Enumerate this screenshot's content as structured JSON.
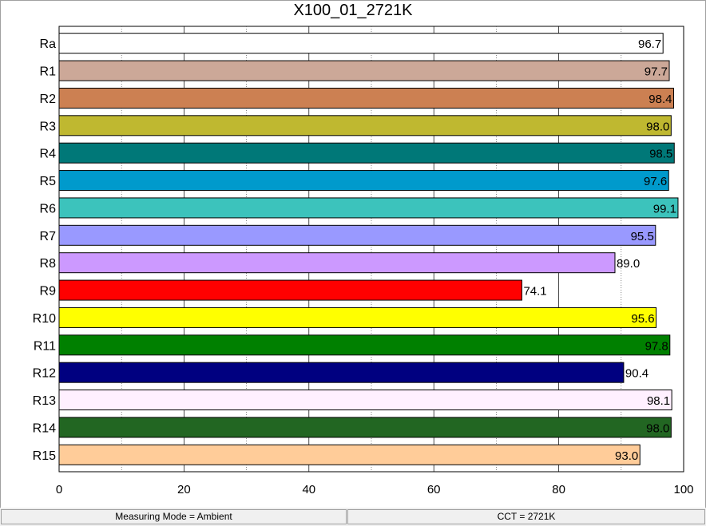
{
  "chart_data": {
    "type": "bar",
    "orientation": "horizontal",
    "title": "X100_01_2721K",
    "categories": [
      "Ra",
      "R1",
      "R2",
      "R3",
      "R4",
      "R5",
      "R6",
      "R7",
      "R8",
      "R9",
      "R10",
      "R11",
      "R12",
      "R13",
      "R14",
      "R15"
    ],
    "values": [
      96.7,
      97.7,
      98.4,
      98.0,
      98.5,
      97.6,
      99.1,
      95.5,
      89.0,
      74.1,
      95.6,
      97.8,
      90.4,
      98.1,
      98.0,
      93.0
    ],
    "value_labels": [
      "96.7",
      "97.7",
      "98.4",
      "98.0",
      "98.5",
      "97.6",
      "99.1",
      "95.5",
      "89.0",
      "74.1",
      "95.6",
      "97.8",
      "90.4",
      "98.1",
      "98.0",
      "93.0"
    ],
    "colors": [
      "#ffffff",
      "#cca898",
      "#cc8052",
      "#bfb830",
      "#007878",
      "#009acc",
      "#3cc3bc",
      "#9999ff",
      "#cc99ff",
      "#ff0000",
      "#ffff00",
      "#008000",
      "#000080",
      "#fff0ff",
      "#226622",
      "#ffcc99"
    ],
    "xlim": [
      0,
      100
    ],
    "xticks": [
      0,
      20,
      40,
      60,
      80,
      100
    ],
    "xtick_labels": [
      "0",
      "20",
      "40",
      "60",
      "80",
      "100"
    ],
    "grid": "vertical",
    "xlabel": "",
    "ylabel": ""
  },
  "status": {
    "left": "Measuring Mode = Ambient",
    "right": "CCT = 2721K"
  }
}
